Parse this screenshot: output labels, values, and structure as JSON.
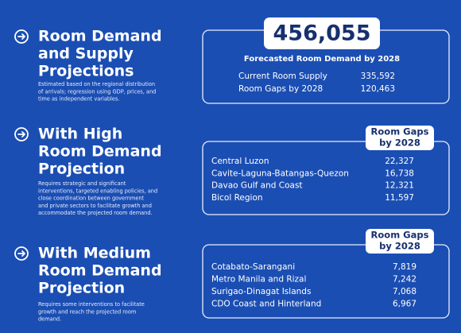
{
  "sections": [
    {
      "title_lines": [
        "Room Demand",
        "and Supply",
        "Projections"
      ],
      "description_lines": [
        "Estimated based on the regional distribution",
        "of arrivals; regression using GDP, prices, and",
        "time as independent variables."
      ],
      "panel": {
        "headline": "456,055",
        "subtitle": "Forecasted Room Demand by 2028",
        "rows": [
          [
            "Current Room Supply",
            "335,592"
          ],
          [
            "Room Gaps by 2028",
            "120,463"
          ]
        ]
      }
    },
    {
      "title_lines": [
        "With High",
        "Room Demand",
        "Projection"
      ],
      "description_lines": [
        "Requires strategic and significant",
        "interventions, targeted enabling policies, and",
        "close coordination between government",
        "and private sectors to facilitate growth and",
        "accommodate the projected room demand."
      ],
      "panel": {
        "badge_lines": [
          "Room Gaps",
          "by 2028"
        ],
        "rows": [
          [
            "Central Luzon",
            "22,327"
          ],
          [
            "Cavite-Laguna-Batangas-Quezon",
            "16,738"
          ],
          [
            "Davao Gulf and Coast",
            "12,321"
          ],
          [
            "Bicol Region",
            "11,597"
          ]
        ]
      }
    },
    {
      "title_lines": [
        "With Medium",
        "Room Demand",
        "Projection"
      ],
      "description_lines": [
        "Requires some interventions to facilitate",
        "growth and reach the projected room",
        "demand."
      ],
      "panel": {
        "badge_lines": [
          "Room Gaps",
          "by 2028"
        ],
        "rows": [
          [
            "Cotabato-Sarangani",
            "7,819"
          ],
          [
            "Metro Manila and Rizal",
            "7,242"
          ],
          [
            "Surigao-Dinagat Islands",
            "7,068"
          ],
          [
            "CDO Coast and Hinterland",
            "6,967"
          ]
        ]
      }
    }
  ]
}
